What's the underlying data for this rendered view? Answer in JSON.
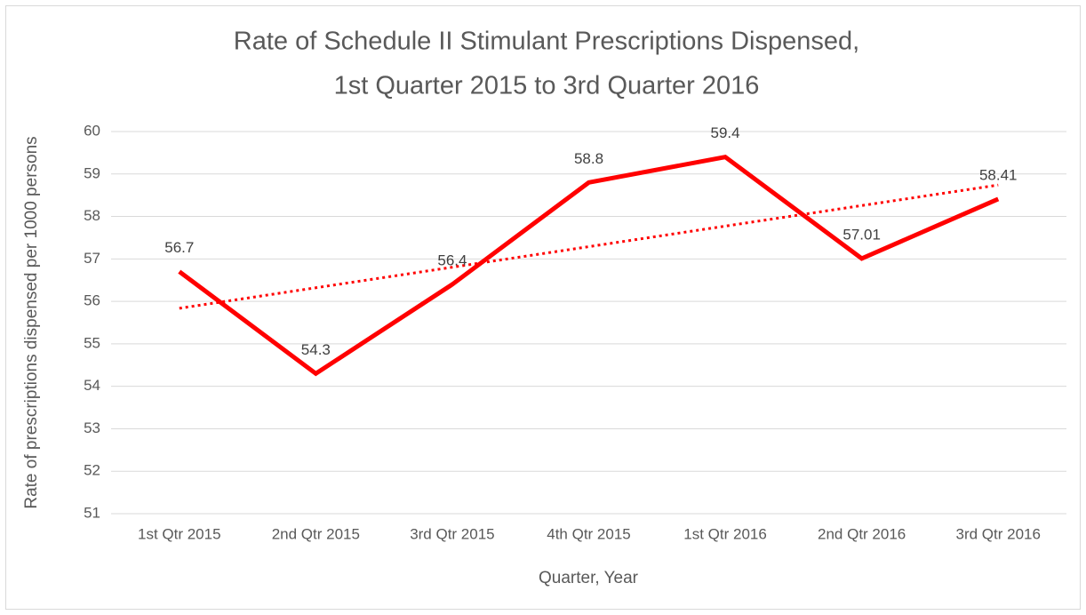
{
  "chart_data": {
    "type": "line",
    "title": [
      "Rate of Schedule II Stimulant Prescriptions Dispensed,",
      "1st Quarter 2015 to 3rd Quarter 2016"
    ],
    "x_label": "Quarter, Year",
    "y_label": "Rate of prescriptions dispensed per 1000 persons",
    "categories": [
      "1st Qtr 2015",
      "2nd Qtr 2015",
      "3rd Qtr 2015",
      "4th Qtr 2015",
      "1st Qtr 2016",
      "2nd Qtr 2016",
      "3rd Qtr 2016"
    ],
    "values": [
      56.7,
      54.3,
      56.4,
      58.8,
      59.4,
      57.01,
      58.41
    ],
    "color": "#ff0000",
    "trendline": "linear",
    "ylim": [
      51,
      60
    ],
    "yticks": [
      51,
      52,
      53,
      54,
      55,
      56,
      57,
      58,
      59,
      60
    ],
    "grid": true
  }
}
